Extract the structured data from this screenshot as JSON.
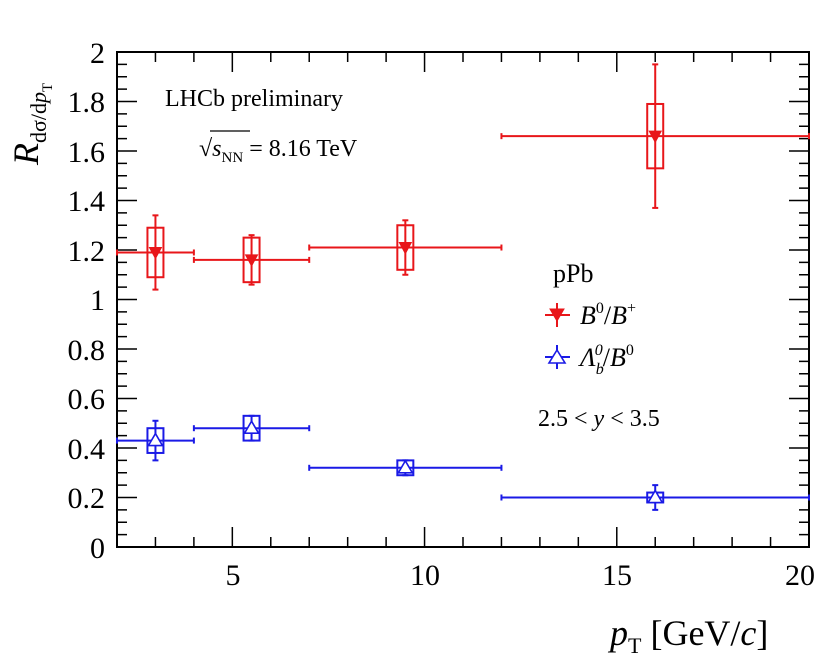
{
  "chart_data": {
    "type": "scatter",
    "title": "",
    "xlabel": "p_T [GeV/c]",
    "ylabel": "R_{dσ/dp_T}",
    "xlim": [
      2,
      20
    ],
    "ylim": [
      0,
      2
    ],
    "x_ticks": [
      "5",
      "10",
      "15",
      "20"
    ],
    "y_ticks": [
      "0",
      "0.2",
      "0.4",
      "0.6",
      "0.8",
      "1",
      "1.2",
      "1.4",
      "1.6",
      "1.8",
      "2"
    ],
    "grid": false,
    "legend": {
      "placement": "right",
      "header": "pPb",
      "entries": [
        "B0/B+",
        "Λb0/B0"
      ]
    },
    "annotations": {
      "experiment": "LHCb preliminary",
      "energy": "√sNN = 8.16 TeV",
      "energy_parts": {
        "root": "√",
        "s": "s",
        "nn": "NN",
        "value": " = 8.16 TeV"
      },
      "rapidity": "2.5 < y < 3.5",
      "rapidity_parts": {
        "pre": "2.5 < ",
        "y": "y",
        "post": " < 3.5"
      }
    },
    "axis_title_parts": {
      "y_main": "R",
      "y_sub_a": "dσ/d",
      "y_sub_p": "p",
      "y_sub_T": "T",
      "x_p": "p",
      "x_T": "T",
      "x_unit_a": " [GeV/",
      "x_unit_c": "c",
      "x_unit_b": "]"
    },
    "series": [
      {
        "name": "B0/B+",
        "color": "#e8161a",
        "marker": "triangle-down-filled",
        "legend_label": {
          "a": "B",
          "a_sup": "0",
          "slash": "/",
          "b": "B",
          "b_sup": "+"
        },
        "points": [
          {
            "x": 3.0,
            "xlo": 2.0,
            "xhi": 4.0,
            "y": 1.19,
            "stat_lo": 1.04,
            "stat_hi": 1.34,
            "syst_lo": 1.09,
            "syst_hi": 1.29
          },
          {
            "x": 5.5,
            "xlo": 4.0,
            "xhi": 7.0,
            "y": 1.16,
            "stat_lo": 1.06,
            "stat_hi": 1.26,
            "syst_lo": 1.07,
            "syst_hi": 1.25
          },
          {
            "x": 9.5,
            "xlo": 7.0,
            "xhi": 12.0,
            "y": 1.21,
            "stat_lo": 1.1,
            "stat_hi": 1.32,
            "syst_lo": 1.12,
            "syst_hi": 1.3
          },
          {
            "x": 16.0,
            "xlo": 12.0,
            "xhi": 20.0,
            "y": 1.66,
            "stat_lo": 1.37,
            "stat_hi": 1.95,
            "syst_lo": 1.53,
            "syst_hi": 1.79
          }
        ]
      },
      {
        "name": "Λb0/B0",
        "color": "#1a1ae6",
        "marker": "triangle-up-open",
        "legend_label": {
          "a": "Λ",
          "a_sub": "b",
          "a_sup": "0",
          "slash": "/",
          "b": "B",
          "b_sup": "0"
        },
        "points": [
          {
            "x": 3.0,
            "xlo": 2.0,
            "xhi": 4.0,
            "y": 0.43,
            "stat_lo": 0.35,
            "stat_hi": 0.51,
            "syst_lo": 0.38,
            "syst_hi": 0.48
          },
          {
            "x": 5.5,
            "xlo": 4.0,
            "xhi": 7.0,
            "y": 0.48,
            "stat_lo": 0.43,
            "stat_hi": 0.53,
            "syst_lo": 0.43,
            "syst_hi": 0.53
          },
          {
            "x": 9.5,
            "xlo": 7.0,
            "xhi": 12.0,
            "y": 0.32,
            "stat_lo": 0.29,
            "stat_hi": 0.35,
            "syst_lo": 0.29,
            "syst_hi": 0.35
          },
          {
            "x": 16.0,
            "xlo": 12.0,
            "xhi": 20.0,
            "y": 0.2,
            "stat_lo": 0.15,
            "stat_hi": 0.25,
            "syst_lo": 0.18,
            "syst_hi": 0.22
          }
        ]
      }
    ]
  }
}
